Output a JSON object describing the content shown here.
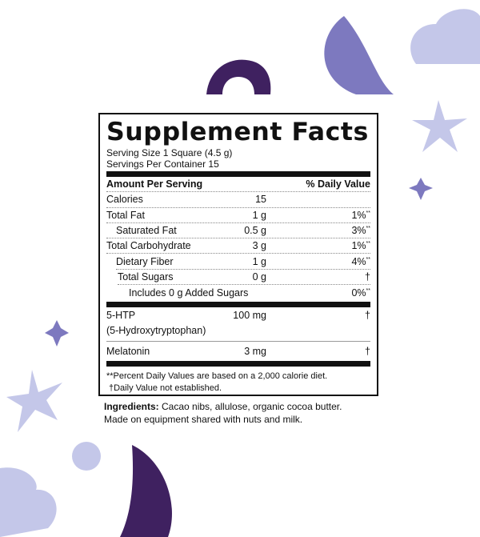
{
  "colors": {
    "dark_purple": "#3f2160",
    "mid_purple": "#7d79bf",
    "light_purple": "#c4c7e9"
  },
  "label": {
    "title": "Supplement Facts",
    "serving_size": "Serving Size 1 Square (4.5 g)",
    "servings_per_container": "Servings Per Container 15",
    "header_amount": "Amount Per Serving",
    "header_dv": "% Daily Value",
    "rows": [
      {
        "name": "Calories",
        "amount": "15",
        "dv": ""
      },
      {
        "name": "Total Fat",
        "amount": "1 g",
        "dv": "1%",
        "mark": "**"
      },
      {
        "name": "Saturated Fat",
        "amount": "0.5 g",
        "dv": "3%",
        "mark": "**"
      },
      {
        "name": "Total Carbohydrate",
        "amount": "3 g",
        "dv": "1%",
        "mark": "**"
      },
      {
        "name": "Dietary Fiber",
        "amount": "1 g",
        "dv": "4%",
        "mark": "**"
      },
      {
        "name": "Total Sugars",
        "amount": "0 g",
        "dv": "†"
      },
      {
        "name": "Includes 0 g Added Sugars",
        "amount": "",
        "dv": "0%",
        "mark": "**"
      }
    ],
    "actives": [
      {
        "name": "5-HTP",
        "sub": "(5-Hydroxytryptophan)",
        "amount": "100 mg",
        "dv": "†"
      },
      {
        "name": "Melatonin",
        "amount": "3 mg",
        "dv": "†"
      }
    ],
    "footnote1": "**Percent Daily Values are based on a 2,000 calorie diet.",
    "footnote2": "†Daily Value not established."
  },
  "ingredients": {
    "label": "Ingredients:",
    "text": " Cacao nibs, allulose, organic cocoa butter.",
    "line2": "Made on equipment shared with nuts and milk."
  }
}
